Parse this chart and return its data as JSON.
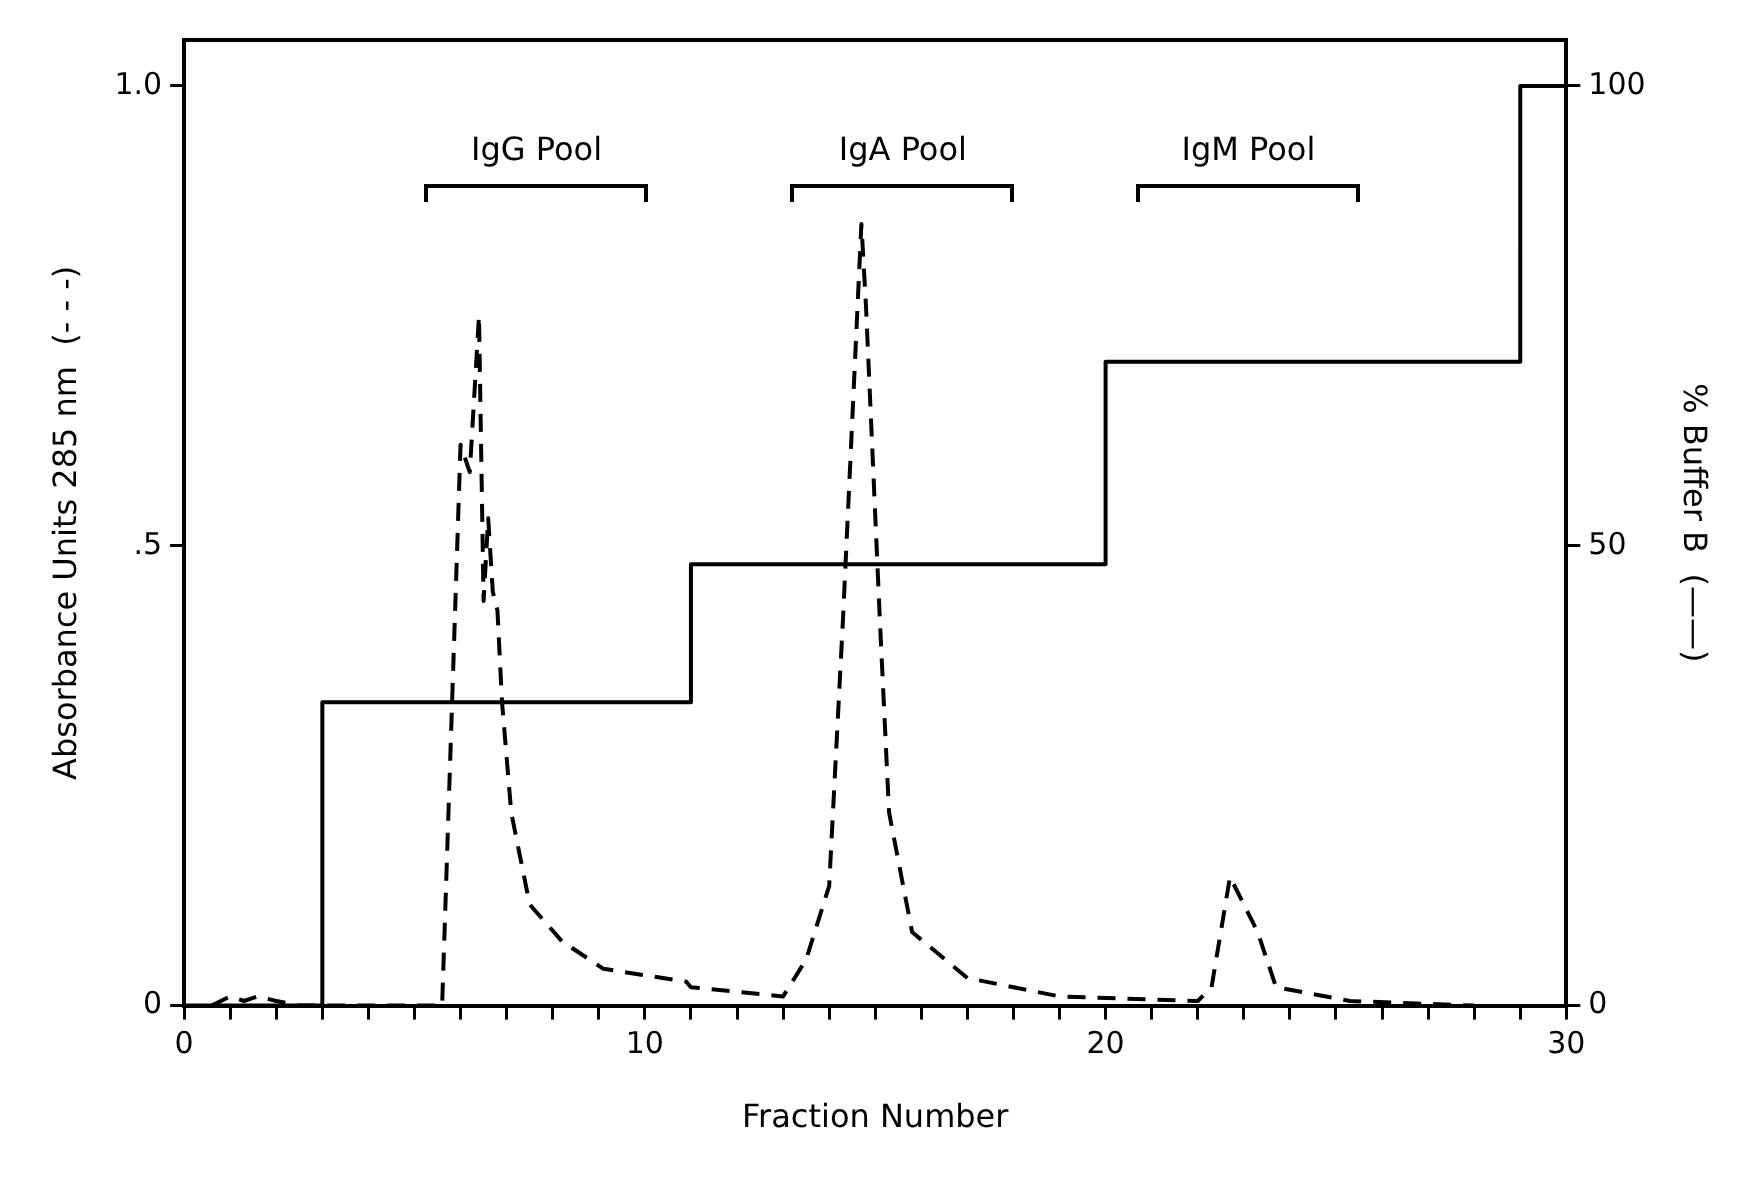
{
  "chart_data": {
    "type": "line",
    "xlabel": "Fraction Number",
    "ylabel": "Absorbance Units 285 nm  (- - -)",
    "y2label": "% Buffer B  (——)",
    "xlim": [
      0,
      30
    ],
    "xticks": [
      0,
      {
        "value": 1,
        "label": null
      },
      {
        "value": 2,
        "label": null
      },
      {
        "value": 3,
        "label": null
      },
      {
        "value": 4,
        "label": null
      },
      {
        "value": 5,
        "label": null
      },
      {
        "value": 6,
        "label": null
      },
      {
        "value": 7,
        "label": null
      },
      {
        "value": 8,
        "label": null
      },
      {
        "value": 9,
        "label": null
      },
      10,
      {
        "value": 11,
        "label": null
      },
      {
        "value": 12,
        "label": null
      },
      {
        "value": 13,
        "label": null
      },
      {
        "value": 14,
        "label": null
      },
      {
        "value": 15,
        "label": null
      },
      {
        "value": 16,
        "label": null
      },
      {
        "value": 17,
        "label": null
      },
      {
        "value": 18,
        "label": null
      },
      {
        "value": 19,
        "label": null
      },
      20,
      {
        "value": 21,
        "label": null
      },
      {
        "value": 22,
        "label": null
      },
      {
        "value": 23,
        "label": null
      },
      {
        "value": 24,
        "label": null
      },
      {
        "value": 25,
        "label": null
      },
      {
        "value": 26,
        "label": null
      },
      {
        "value": 27,
        "label": null
      },
      {
        "value": 28,
        "label": null
      },
      {
        "value": 29,
        "label": null
      },
      30
    ],
    "ylim": [
      0,
      1.05
    ],
    "yticks": [
      0,
      {
        "value": 0.5,
        "label": ".5"
      },
      {
        "value": 1,
        "label": "1.0"
      }
    ],
    "y2lim": [
      0,
      105
    ],
    "y2ticks": [
      0,
      50,
      100
    ],
    "grid": false,
    "legend": false,
    "marker": "none",
    "series": [
      {
        "axis": "y",
        "color": "#000000",
        "line_style": "dashed",
        "x": [
          0.6,
          1.0,
          1.3,
          1.6,
          2.0,
          2.5,
          5.6,
          6.0,
          6.2,
          6.4,
          6.5,
          6.6,
          6.7,
          6.8,
          6.9,
          7.1,
          7.5,
          8.2,
          9.1,
          10.9,
          11.0,
          13.0,
          13.5,
          14.0,
          14.3,
          14.7,
          14.8,
          15.1,
          15.3,
          15.8,
          17.0,
          19.0,
          22.0,
          22.3,
          22.7,
          23.3,
          23.7,
          25.3,
          28.0
        ],
        "values": [
          0,
          0.01,
          0.005,
          0.01,
          0.005,
          0,
          0,
          0.61,
          0.58,
          0.75,
          0.44,
          0.53,
          0.45,
          0.43,
          0.33,
          0.21,
          0.11,
          0.07,
          0.04,
          0.026,
          0.02,
          0.01,
          0.05,
          0.13,
          0.42,
          0.85,
          0.76,
          0.42,
          0.21,
          0.08,
          0.03,
          0.01,
          0.005,
          0.02,
          0.14,
          0.08,
          0.02,
          0.005,
          0
        ]
      },
      {
        "type": "step",
        "axis": "y2",
        "color": "#000000",
        "line_style": "solid",
        "x": [
          0,
          3,
          11,
          20,
          29,
          30
        ],
        "values": [
          0,
          33,
          48,
          70,
          100,
          100
        ]
      }
    ],
    "annotations": [
      "IgG Pool",
      "IgA Pool",
      "IgM Pool"
    ]
  }
}
